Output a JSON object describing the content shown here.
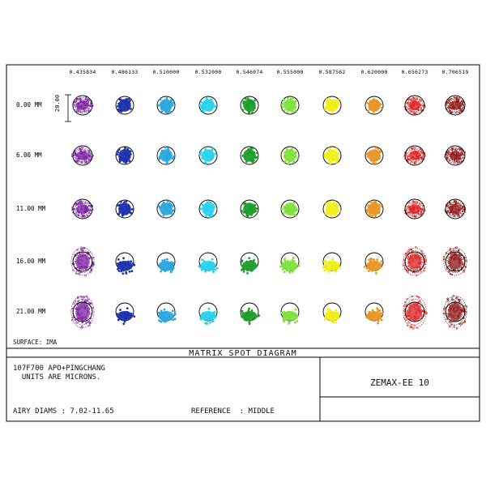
{
  "wavelengths": [
    "0.435834",
    "0.486133",
    "0.510000",
    "0.532000",
    "0.546074",
    "0.555000",
    "0.587562",
    "0.620000",
    "0.656273",
    "0.706519"
  ],
  "fields": [
    "0.00 MM",
    "6.00 MM",
    "11.00 MM",
    "16.00 MM",
    "21.00 MM"
  ],
  "scale_label": "20.00",
  "surface_label": "SURFACE: IMA",
  "diagram_title": "MATRIX SPOT DIAGRAM",
  "lens_line1": "107F700 APO+PINGCHANG",
  "lens_line2": "  UNITS ARE MICRONS.",
  "airy_label": "AIRY DIAMS : 7.02-11.65",
  "reference_label": "REFERENCE  : MIDDLE",
  "config_label": "ZEMAX-EE 10",
  "colors": {
    "spots": [
      "#7a1ea0",
      "#1b2fae",
      "#2aa7dd",
      "#27d3ee",
      "#1b9e2a",
      "#7fe23a",
      "#f2ee14",
      "#e79624",
      "#db1f1f",
      "#8e1414"
    ]
  }
}
